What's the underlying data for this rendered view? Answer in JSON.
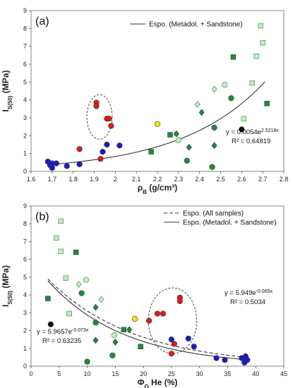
{
  "chart_data": [
    {
      "type": "scatter",
      "panel_label": "(a)",
      "xlabel_main": "ρ",
      "xlabel_sub": "B",
      "xlabel_unit": " (g/cm³)",
      "ylabel_main": "I",
      "ylabel_sub": "S(50)",
      "ylabel_unit": " (MPa)",
      "xlim": [
        1.6,
        2.8
      ],
      "ylim": [
        0,
        9
      ],
      "xticks": [
        "1.6",
        "1.7",
        "1.8",
        "1.9",
        "2",
        "2.1",
        "2.2",
        "2.3",
        "2.4",
        "2.5",
        "2.6",
        "2.7",
        "2.8"
      ],
      "yticks": [
        "0",
        "1",
        "2",
        "3",
        "4",
        "5",
        "6",
        "7",
        "8",
        "9"
      ],
      "legend": [
        {
          "label": "Espo. (Metadol. + Sandstone)",
          "dash": false
        }
      ],
      "trendlines": [
        {
          "a": 0.0054,
          "b": 2.5218,
          "dash": false,
          "x_from": 1.68,
          "x_to": 2.71
        }
      ],
      "annotations": [
        {
          "eq": "y = 0.0054e",
          "exp": "2.5218x",
          "r2": "R² = 0.64819"
        }
      ],
      "ellipse": {
        "cx": 1.925,
        "cy": 3.05,
        "rx": 0.06,
        "ry": 1.25
      },
      "points": [
        {
          "x": 1.68,
          "y": 0.55,
          "marker": "circle",
          "color": "#1a1ac8"
        },
        {
          "x": 1.69,
          "y": 0.35,
          "marker": "circle",
          "color": "#1a1ac8"
        },
        {
          "x": 1.7,
          "y": 0.2,
          "marker": "circle",
          "color": "#1a1ac8"
        },
        {
          "x": 1.7,
          "y": 0.45,
          "marker": "circle",
          "color": "#1a1ac8"
        },
        {
          "x": 1.72,
          "y": 0.45,
          "marker": "circle",
          "color": "#1a1ac8"
        },
        {
          "x": 1.77,
          "y": 0.3,
          "marker": "circle",
          "color": "#1a1ac8"
        },
        {
          "x": 1.83,
          "y": 0.4,
          "marker": "circle",
          "color": "#1a1ac8"
        },
        {
          "x": 1.94,
          "y": 1.1,
          "marker": "circle",
          "color": "#1a1ac8"
        },
        {
          "x": 1.96,
          "y": 1.5,
          "marker": "circle",
          "color": "#1a1ac8"
        },
        {
          "x": 2.02,
          "y": 1.45,
          "marker": "circle",
          "color": "#1a1ac8"
        },
        {
          "x": 1.83,
          "y": 1.25,
          "marker": "circle",
          "color": "#e01b1b"
        },
        {
          "x": 1.91,
          "y": 3.85,
          "marker": "circle",
          "color": "#e01b1b"
        },
        {
          "x": 1.91,
          "y": 3.65,
          "marker": "circle",
          "color": "#e01b1b"
        },
        {
          "x": 1.96,
          "y": 2.95,
          "marker": "circle",
          "color": "#e01b1b"
        },
        {
          "x": 1.97,
          "y": 2.95,
          "marker": "circle",
          "color": "#e01b1b"
        },
        {
          "x": 1.98,
          "y": 2.55,
          "marker": "circle",
          "color": "#e01b1b"
        },
        {
          "x": 1.93,
          "y": 0.7,
          "marker": "circle",
          "color": "#e01b1b"
        },
        {
          "x": 2.2,
          "y": 2.65,
          "marker": "circle",
          "color": "#f5e51a"
        },
        {
          "x": 2.6,
          "y": 2.35,
          "marker": "circle",
          "color": "#111111"
        },
        {
          "x": 2.17,
          "y": 1.1,
          "marker": "square",
          "color": "#1e8c3a"
        },
        {
          "x": 2.26,
          "y": 2.05,
          "marker": "square",
          "color": "#1e8c3a"
        },
        {
          "x": 2.56,
          "y": 6.4,
          "marker": "square",
          "color": "#1e8c3a"
        },
        {
          "x": 2.72,
          "y": 3.8,
          "marker": "square",
          "color": "#1e8c3a"
        },
        {
          "x": 2.29,
          "y": 2.1,
          "marker": "diamond",
          "color": "#1e8c3a"
        },
        {
          "x": 2.35,
          "y": 1.35,
          "marker": "diamond",
          "color": "#1e8c3a"
        },
        {
          "x": 2.41,
          "y": 3.3,
          "marker": "diamond",
          "color": "#1e8c3a"
        },
        {
          "x": 2.47,
          "y": 1.45,
          "marker": "diamond",
          "color": "#1e8c3a"
        },
        {
          "x": 2.34,
          "y": 0.6,
          "marker": "circle",
          "color": "#1e8c3a"
        },
        {
          "x": 2.46,
          "y": 0.25,
          "marker": "circle",
          "color": "#1e8c3a"
        },
        {
          "x": 2.47,
          "y": 2.45,
          "marker": "circle",
          "color": "#1e8c3a"
        },
        {
          "x": 2.55,
          "y": 4.1,
          "marker": "circle",
          "color": "#1e8c3a"
        },
        {
          "x": 2.3,
          "y": 1.75,
          "marker": "circle",
          "color": "#c8e8c8"
        },
        {
          "x": 2.52,
          "y": 4.85,
          "marker": "circle",
          "color": "#c8e8c8"
        },
        {
          "x": 2.39,
          "y": 3.75,
          "marker": "diamond",
          "color": "#c8e8c8"
        },
        {
          "x": 2.47,
          "y": 4.6,
          "marker": "diamond",
          "color": "#c8e8c8"
        },
        {
          "x": 2.61,
          "y": 2.95,
          "marker": "square",
          "color": "#c8e8c8"
        },
        {
          "x": 2.65,
          "y": 4.95,
          "marker": "square",
          "color": "#c8e8c8"
        },
        {
          "x": 2.67,
          "y": 6.45,
          "marker": "square",
          "color": "#c8e8c8"
        },
        {
          "x": 2.69,
          "y": 8.15,
          "marker": "square",
          "color": "#c8e8c8"
        },
        {
          "x": 2.7,
          "y": 7.2,
          "marker": "square",
          "color": "#c8e8c8"
        }
      ]
    },
    {
      "type": "scatter",
      "panel_label": "(b)",
      "xlabel_main": "Φ",
      "xlabel_sub": "O",
      "xlabel_unit": " He (%)",
      "ylabel_main": "I",
      "ylabel_sub": "S(50)",
      "ylabel_unit": " (MPa)",
      "xlim": [
        0,
        45
      ],
      "ylim": [
        0,
        9
      ],
      "xticks": [
        "0",
        "5",
        "10",
        "15",
        "20",
        "25",
        "30",
        "35",
        "40",
        "45"
      ],
      "yticks": [
        "0",
        "1",
        "2",
        "3",
        "4",
        "5",
        "6",
        "7",
        "8",
        "9"
      ],
      "legend": [
        {
          "label": "Espo. (All samples)",
          "dash": true
        },
        {
          "label": "Espo. (Metadol. + Sandstone)",
          "dash": false
        }
      ],
      "trendlines": [
        {
          "a": 5.949,
          "b": -0.065,
          "dash": true,
          "x_from": 3,
          "x_to": 38.5
        },
        {
          "a": 5.9657,
          "b": -0.073,
          "dash": false,
          "x_from": 3,
          "x_to": 38.5
        }
      ],
      "annotations": [
        {
          "eq": "y = 5.949e",
          "exp": "-0.065x",
          "r2": "R² = 0.5034"
        },
        {
          "eq": "y = 5.9657e",
          "exp": "-0.073x",
          "r2": "R² = 0.63235"
        }
      ],
      "ellipse": {
        "cx": 25.2,
        "cy": 2.55,
        "rx": 4.3,
        "ry": 1.85
      },
      "points": [
        {
          "x": 3,
          "y": 3.8,
          "marker": "square",
          "color": "#1e8c3a"
        },
        {
          "x": 8,
          "y": 6.4,
          "marker": "square",
          "color": "#1e8c3a"
        },
        {
          "x": 16.5,
          "y": 2.05,
          "marker": "square",
          "color": "#1e8c3a"
        },
        {
          "x": 19.5,
          "y": 1.1,
          "marker": "square",
          "color": "#1e8c3a"
        },
        {
          "x": 3.5,
          "y": 2.35,
          "marker": "circle",
          "color": "#111111"
        },
        {
          "x": 9,
          "y": 4.1,
          "marker": "circle",
          "color": "#1e8c3a"
        },
        {
          "x": 10,
          "y": 0.25,
          "marker": "circle",
          "color": "#1e8c3a"
        },
        {
          "x": 11.5,
          "y": 2.45,
          "marker": "circle",
          "color": "#1e8c3a"
        },
        {
          "x": 14.5,
          "y": 0.6,
          "marker": "circle",
          "color": "#1e8c3a"
        },
        {
          "x": 11.5,
          "y": 1.45,
          "marker": "diamond",
          "color": "#1e8c3a"
        },
        {
          "x": 11.5,
          "y": 3.3,
          "marker": "diamond",
          "color": "#1e8c3a"
        },
        {
          "x": 15,
          "y": 1.35,
          "marker": "diamond",
          "color": "#1e8c3a"
        },
        {
          "x": 17.5,
          "y": 2.05,
          "marker": "diamond",
          "color": "#1e8c3a"
        },
        {
          "x": 4.5,
          "y": 7.2,
          "marker": "square",
          "color": "#c8e8c8"
        },
        {
          "x": 5.3,
          "y": 8.15,
          "marker": "square",
          "color": "#c8e8c8"
        },
        {
          "x": 5.3,
          "y": 6.45,
          "marker": "square",
          "color": "#c8e8c8"
        },
        {
          "x": 6.2,
          "y": 4.95,
          "marker": "square",
          "color": "#c8e8c8"
        },
        {
          "x": 6.8,
          "y": 2.95,
          "marker": "square",
          "color": "#c8e8c8"
        },
        {
          "x": 8.5,
          "y": 4.6,
          "marker": "diamond",
          "color": "#c8e8c8"
        },
        {
          "x": 12.5,
          "y": 3.75,
          "marker": "diamond",
          "color": "#c8e8c8"
        },
        {
          "x": 9.8,
          "y": 4.85,
          "marker": "circle",
          "color": "#c8e8c8"
        },
        {
          "x": 14.8,
          "y": 1.75,
          "marker": "circle",
          "color": "#c8e8c8"
        },
        {
          "x": 18.5,
          "y": 2.65,
          "marker": "circle",
          "color": "#f5e51a"
        },
        {
          "x": 21,
          "y": 2.55,
          "marker": "circle",
          "color": "#e01b1b"
        },
        {
          "x": 22.5,
          "y": 2.95,
          "marker": "circle",
          "color": "#e01b1b"
        },
        {
          "x": 23.5,
          "y": 2.95,
          "marker": "circle",
          "color": "#e01b1b"
        },
        {
          "x": 25,
          "y": 0.7,
          "marker": "circle",
          "color": "#e01b1b"
        },
        {
          "x": 25.5,
          "y": 1.25,
          "marker": "circle",
          "color": "#e01b1b"
        },
        {
          "x": 26.5,
          "y": 3.85,
          "marker": "circle",
          "color": "#e01b1b"
        },
        {
          "x": 26.5,
          "y": 3.65,
          "marker": "circle",
          "color": "#e01b1b"
        },
        {
          "x": 25,
          "y": 1.5,
          "marker": "circle",
          "color": "#1a1ac8"
        },
        {
          "x": 28,
          "y": 1.55,
          "marker": "circle",
          "color": "#1a1ac8"
        },
        {
          "x": 29,
          "y": 1.1,
          "marker": "circle",
          "color": "#1a1ac8"
        },
        {
          "x": 33,
          "y": 0.45,
          "marker": "circle",
          "color": "#1a1ac8"
        },
        {
          "x": 34.5,
          "y": 0.35,
          "marker": "circle",
          "color": "#1a1ac8"
        },
        {
          "x": 37.5,
          "y": 0.45,
          "marker": "circle",
          "color": "#1a1ac8"
        },
        {
          "x": 38,
          "y": 0.2,
          "marker": "circle",
          "color": "#1a1ac8"
        },
        {
          "x": 38.2,
          "y": 0.55,
          "marker": "circle",
          "color": "#1a1ac8"
        },
        {
          "x": 38.5,
          "y": 0.35,
          "marker": "circle",
          "color": "#1a1ac8"
        }
      ]
    }
  ]
}
